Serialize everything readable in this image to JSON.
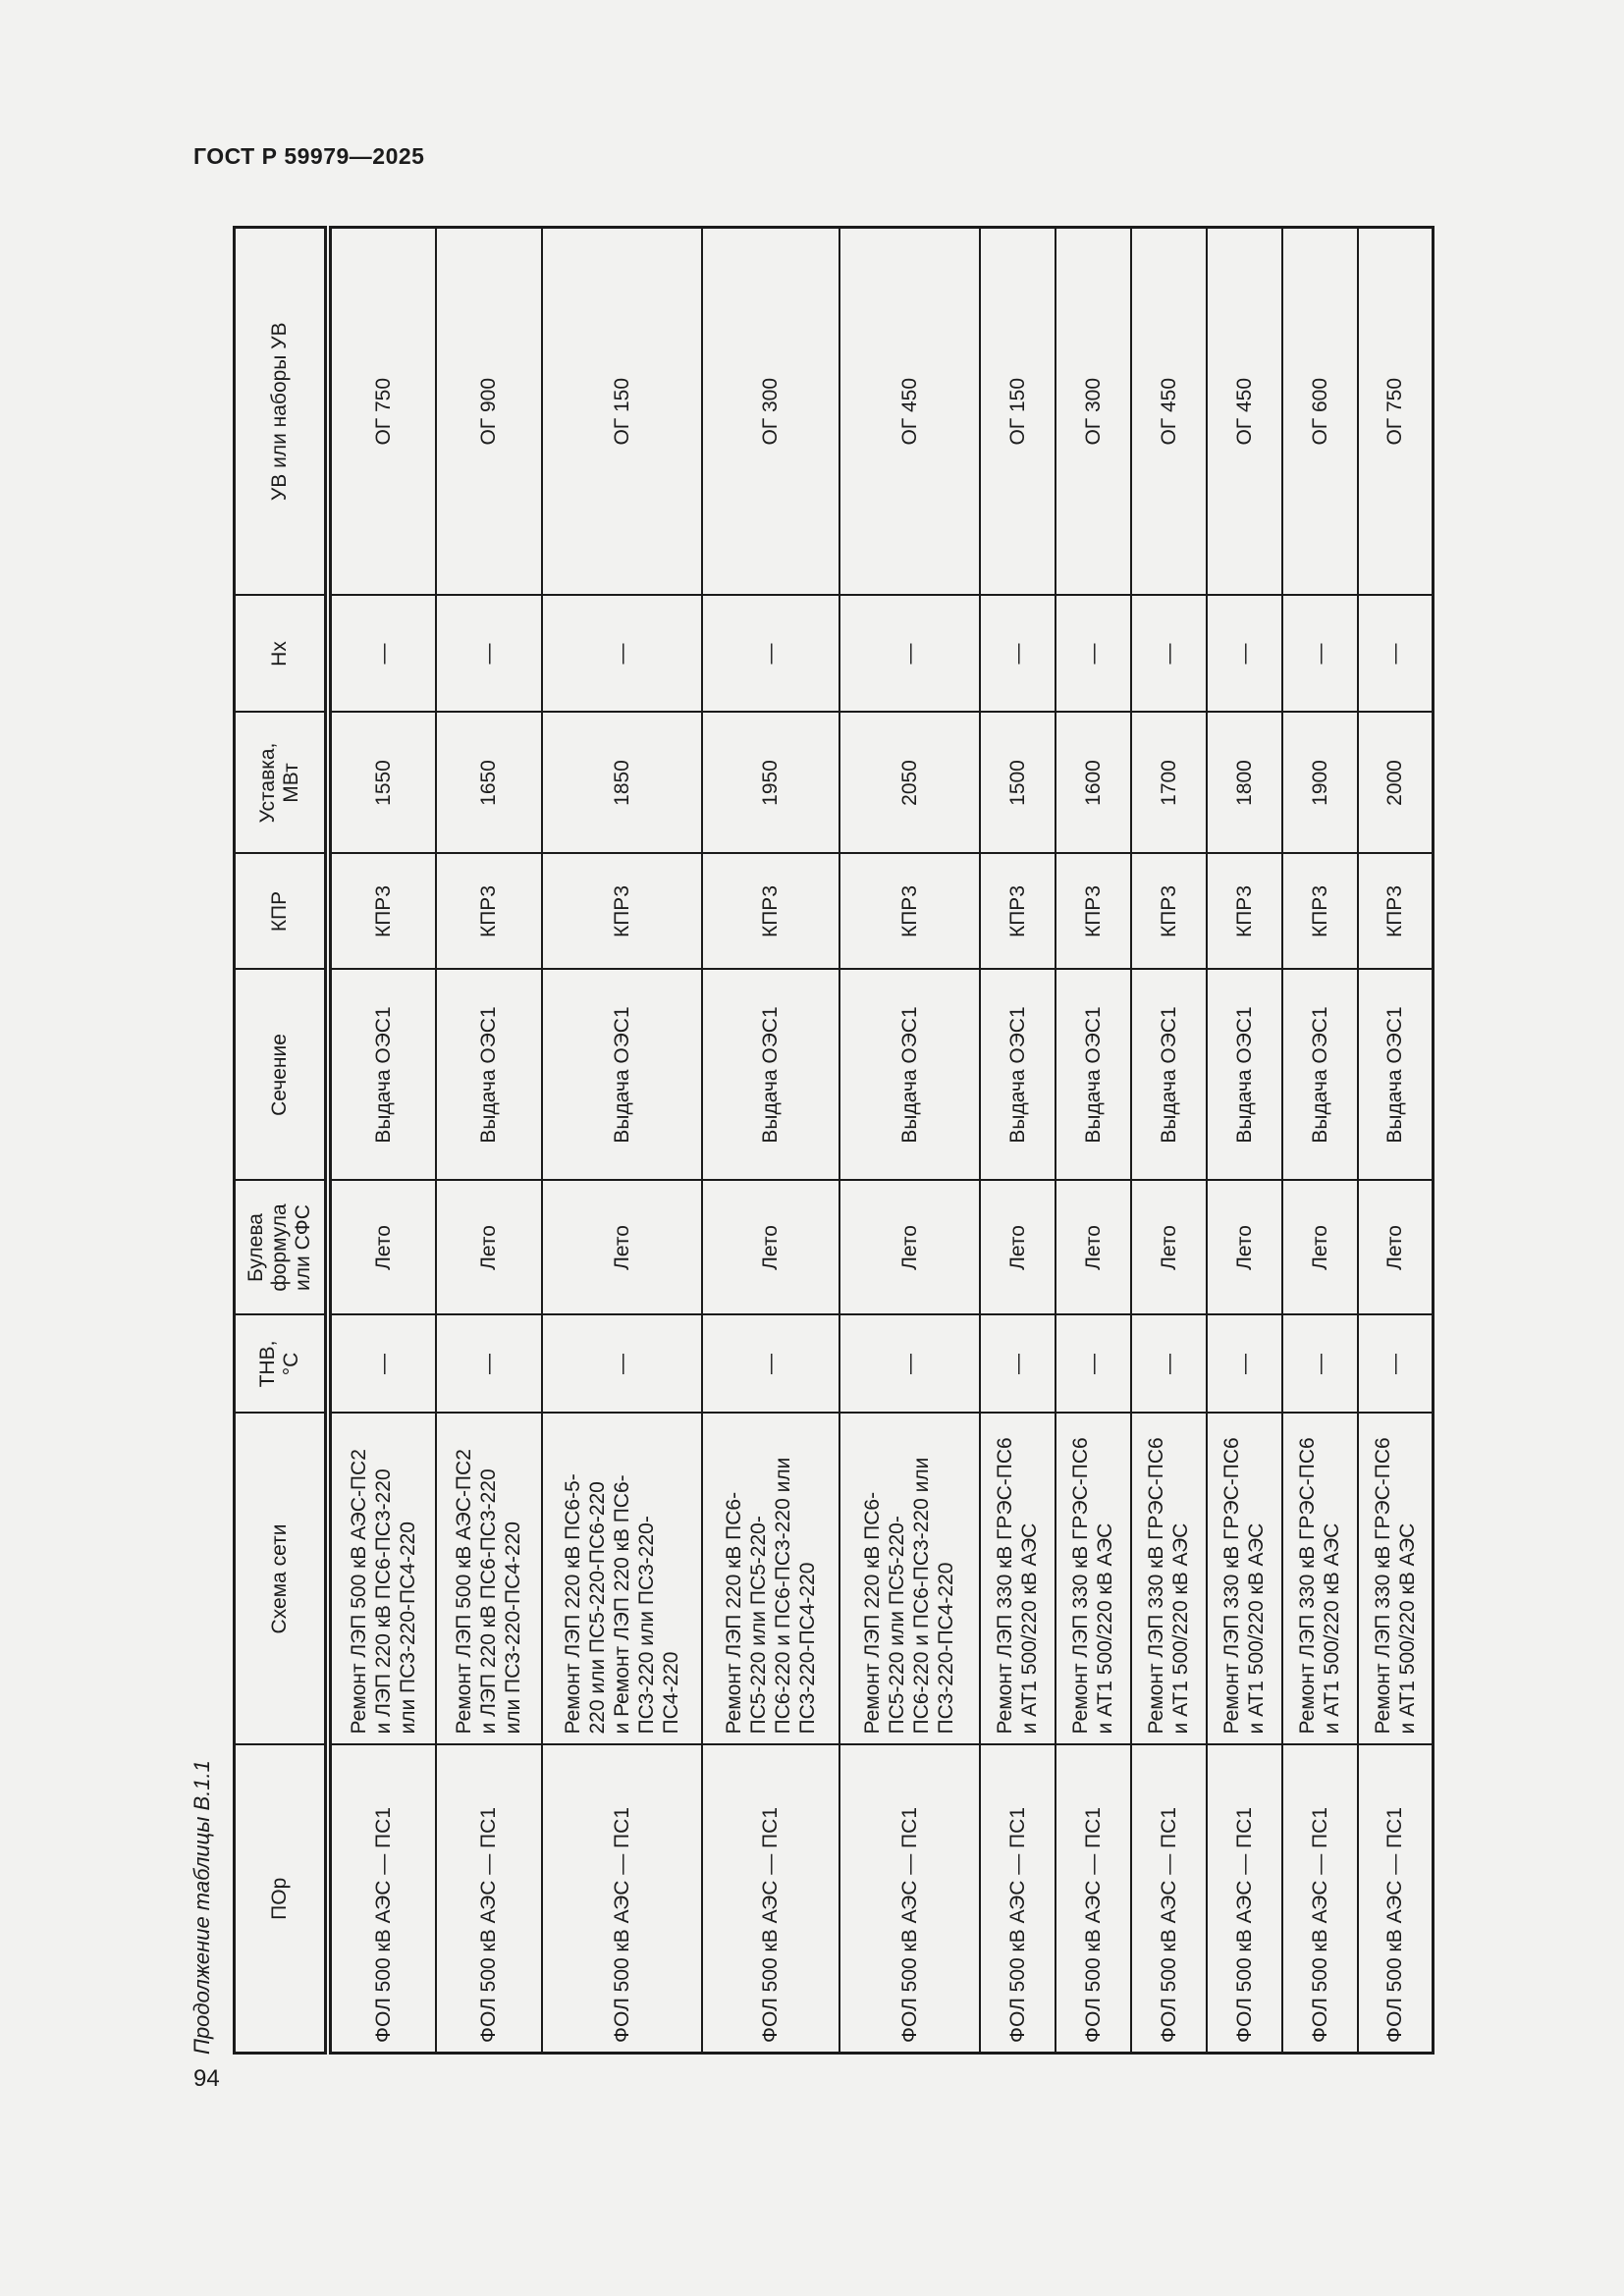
{
  "page": {
    "doc_number": "ГОСТ Р 59979—2025",
    "table_caption": "Продолжение таблицы В.1.1",
    "page_number": "94"
  },
  "table": {
    "headers": [
      "ПОр",
      "Схема сети",
      "ТНВ,\n°С",
      "Булева\nформула\nили СФС",
      "Сечение",
      "КПР",
      "Уставка,\nМВт",
      "Нх",
      "УВ или наборы УВ"
    ],
    "rows": [
      [
        "ФОЛ 500 кВ АЭС — ПС1",
        "Ремонт ЛЭП 500 кВ АЭС-ПС2\nи ЛЭП 220 кВ ПС6-ПС3-220\nили ПС3-220-ПС4-220",
        "—",
        "Лето",
        "Выдача ОЭС1",
        "КПР3",
        "1550",
        "—",
        "ОГ 750"
      ],
      [
        "ФОЛ 500 кВ АЭС — ПС1",
        "Ремонт ЛЭП 500 кВ АЭС-ПС2\nи ЛЭП 220 кВ ПС6-ПС3-220\nили ПС3-220-ПС4-220",
        "—",
        "Лето",
        "Выдача ОЭС1",
        "КПР3",
        "1650",
        "—",
        "ОГ 900"
      ],
      [
        "ФОЛ 500 кВ АЭС — ПС1",
        "Ремонт ЛЭП 220 кВ ПС6-5-\n220 или ПС5-220-ПС6-220\nи Ремонт ЛЭП 220 кВ ПС6-\nПС3-220 или ПС3-220-\nПС4-220",
        "—",
        "Лето",
        "Выдача ОЭС1",
        "КПР3",
        "1850",
        "—",
        "ОГ 150"
      ],
      [
        "ФОЛ 500 кВ АЭС — ПС1",
        "Ремонт ЛЭП 220 кВ ПС6-\nПС5-220 или ПС5-220-\nПС6-220 и ПС6-ПС3-220 или\nПС3-220-ПС4-220",
        "—",
        "Лето",
        "Выдача ОЭС1",
        "КПР3",
        "1950",
        "—",
        "ОГ 300"
      ],
      [
        "ФОЛ 500 кВ АЭС — ПС1",
        "Ремонт ЛЭП 220 кВ ПС6-\nПС5-220 или ПС5-220-\nПС6-220 и ПС6-ПС3-220 или\nПС3-220-ПС4-220",
        "—",
        "Лето",
        "Выдача ОЭС1",
        "КПР3",
        "2050",
        "—",
        "ОГ 450"
      ],
      [
        "ФОЛ 500 кВ АЭС — ПС1",
        "Ремонт ЛЭП 330 кВ ГРЭС-ПС6\nи АТ1 500/220 кВ АЭС",
        "—",
        "Лето",
        "Выдача ОЭС1",
        "КПР3",
        "1500",
        "—",
        "ОГ 150"
      ],
      [
        "ФОЛ 500 кВ АЭС — ПС1",
        "Ремонт ЛЭП 330 кВ ГРЭС-ПС6\nи АТ1 500/220 кВ АЭС",
        "—",
        "Лето",
        "Выдача ОЭС1",
        "КПР3",
        "1600",
        "—",
        "ОГ 300"
      ],
      [
        "ФОЛ 500 кВ АЭС — ПС1",
        "Ремонт ЛЭП 330 кВ ГРЭС-ПС6\nи АТ1 500/220 кВ АЭС",
        "—",
        "Лето",
        "Выдача ОЭС1",
        "КПР3",
        "1700",
        "—",
        "ОГ 450"
      ],
      [
        "ФОЛ 500 кВ АЭС — ПС1",
        "Ремонт ЛЭП 330 кВ ГРЭС-ПС6\nи АТ1 500/220 кВ АЭС",
        "—",
        "Лето",
        "Выдача ОЭС1",
        "КПР3",
        "1800",
        "—",
        "ОГ 450"
      ],
      [
        "ФОЛ 500 кВ АЭС — ПС1",
        "Ремонт ЛЭП 330 кВ ГРЭС-ПС6\nи АТ1 500/220 кВ АЭС",
        "—",
        "Лето",
        "Выдача ОЭС1",
        "КПР3",
        "1900",
        "—",
        "ОГ 600"
      ],
      [
        "ФОЛ 500 кВ АЭС — ПС1",
        "Ремонт ЛЭП 330 кВ ГРЭС-ПС6\nи АТ1 500/220 кВ АЭС",
        "—",
        "Лето",
        "Выдача ОЭС1",
        "КПР3",
        "2000",
        "—",
        "ОГ 750"
      ]
    ]
  }
}
